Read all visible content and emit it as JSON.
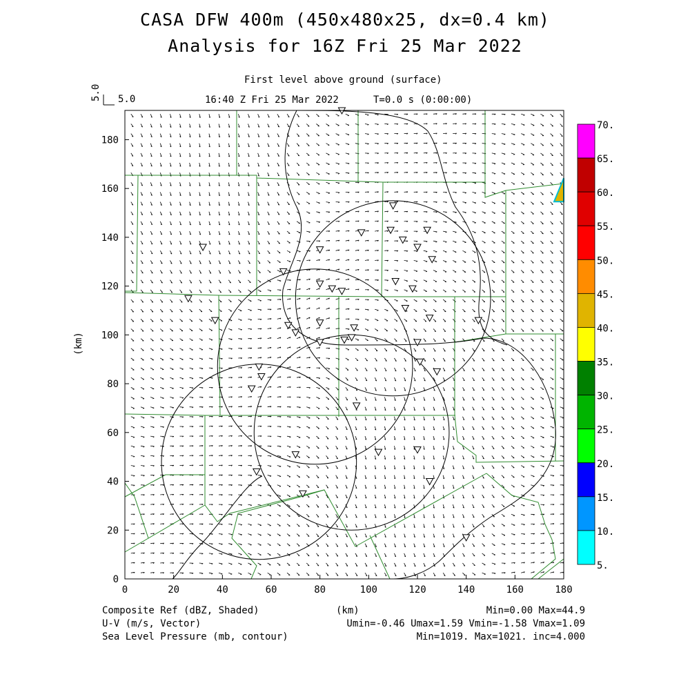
{
  "title": {
    "line1": "CASA DFW 400m (450x480x25, dx=0.4 km)",
    "line2": "Analysis for 16Z Fri 25 Mar 2022"
  },
  "subtitle": {
    "level": "First level above ground (surface)",
    "time": "16:40 Z Fri 25 Mar 2022",
    "tstep": "T=0.0 s (0:00:00)"
  },
  "vector_ref": {
    "label": "5.0",
    "axis_label": "5.0"
  },
  "footer": {
    "field1": "Composite Ref (dBZ, Shaded)",
    "field2": "U-V (m/s, Vector)",
    "field3": "Sea Level Pressure (mb, contour)",
    "xunit": "(km)",
    "stats1": "Min=0.00 Max=44.9",
    "stats2": "Umin=-0.46 Umax=1.59 Vmin=-1.58 Vmax=1.09",
    "stats3": "Min=1019. Max=1021. inc=4.000"
  },
  "colors": {
    "county_lines": "#2e8b2e",
    "contours": "#000000",
    "radar_echo": "#e0b400",
    "radar_echo_edge": "#00bcd4"
  },
  "colorbar": {
    "levels": [
      "70.",
      "65.",
      "60.",
      "55.",
      "50.",
      "45.",
      "40.",
      "35.",
      "30.",
      "25.",
      "20.",
      "15.",
      "10.",
      "5."
    ],
    "colors": [
      "#ff00ff",
      "#c00000",
      "#e00000",
      "#ff0000",
      "#ff8c00",
      "#e0b400",
      "#ffff00",
      "#008000",
      "#00b400",
      "#00ff00",
      "#0000ff",
      "#0096ff",
      "#00ffff"
    ]
  },
  "chart_data": {
    "type": "contour",
    "xlabel": "(km)",
    "ylabel": "(km)",
    "xlim": [
      0,
      180
    ],
    "ylim": [
      0,
      192
    ],
    "xticks": [
      "0",
      "20",
      "40",
      "60",
      "80",
      "100",
      "120",
      "140",
      "160",
      "180"
    ],
    "yticks": [
      "0",
      "20",
      "40",
      "60",
      "80",
      "100",
      "120",
      "140",
      "160",
      "180"
    ],
    "radar_range_rings": [
      {
        "center": [
          110,
          115
        ],
        "radius": 40
      },
      {
        "center": [
          78,
          87
        ],
        "radius": 40
      },
      {
        "center": [
          93,
          60
        ],
        "radius": 40
      },
      {
        "center": [
          55,
          48
        ],
        "radius": 40
      }
    ],
    "radar_sites": [
      [
        89,
        192
      ],
      [
        110,
        153
      ],
      [
        109,
        143
      ],
      [
        124,
        143
      ],
      [
        32,
        136
      ],
      [
        80,
        135
      ],
      [
        97,
        142
      ],
      [
        114,
        139
      ],
      [
        120,
        136
      ],
      [
        126,
        131
      ],
      [
        65,
        126
      ],
      [
        80,
        121
      ],
      [
        85,
        119
      ],
      [
        89,
        118
      ],
      [
        111,
        122
      ],
      [
        118,
        119
      ],
      [
        26,
        115
      ],
      [
        37,
        106
      ],
      [
        67,
        104
      ],
      [
        70,
        101
      ],
      [
        80,
        105
      ],
      [
        115,
        111
      ],
      [
        125,
        107
      ],
      [
        145,
        106
      ],
      [
        80,
        97
      ],
      [
        90,
        98
      ],
      [
        93,
        99
      ],
      [
        94,
        103
      ],
      [
        120,
        97
      ],
      [
        121,
        89
      ],
      [
        128,
        85
      ],
      [
        55,
        87
      ],
      [
        56,
        83
      ],
      [
        52,
        78
      ],
      [
        95,
        71
      ],
      [
        70,
        51
      ],
      [
        104,
        52
      ],
      [
        120,
        53
      ],
      [
        54,
        44
      ],
      [
        73,
        35
      ],
      [
        125,
        40
      ],
      [
        140,
        17
      ]
    ],
    "radar_echo": {
      "value_dbz": 44.9,
      "location": [
        180,
        158
      ]
    },
    "wind_field": {
      "umin": -0.46,
      "umax": 1.59,
      "vmin": -1.58,
      "vmax": 1.09
    },
    "pressure": {
      "min": 1019,
      "max": 1021,
      "inc": 4
    },
    "reflectivity": {
      "min": 0.0,
      "max": 44.9
    }
  }
}
